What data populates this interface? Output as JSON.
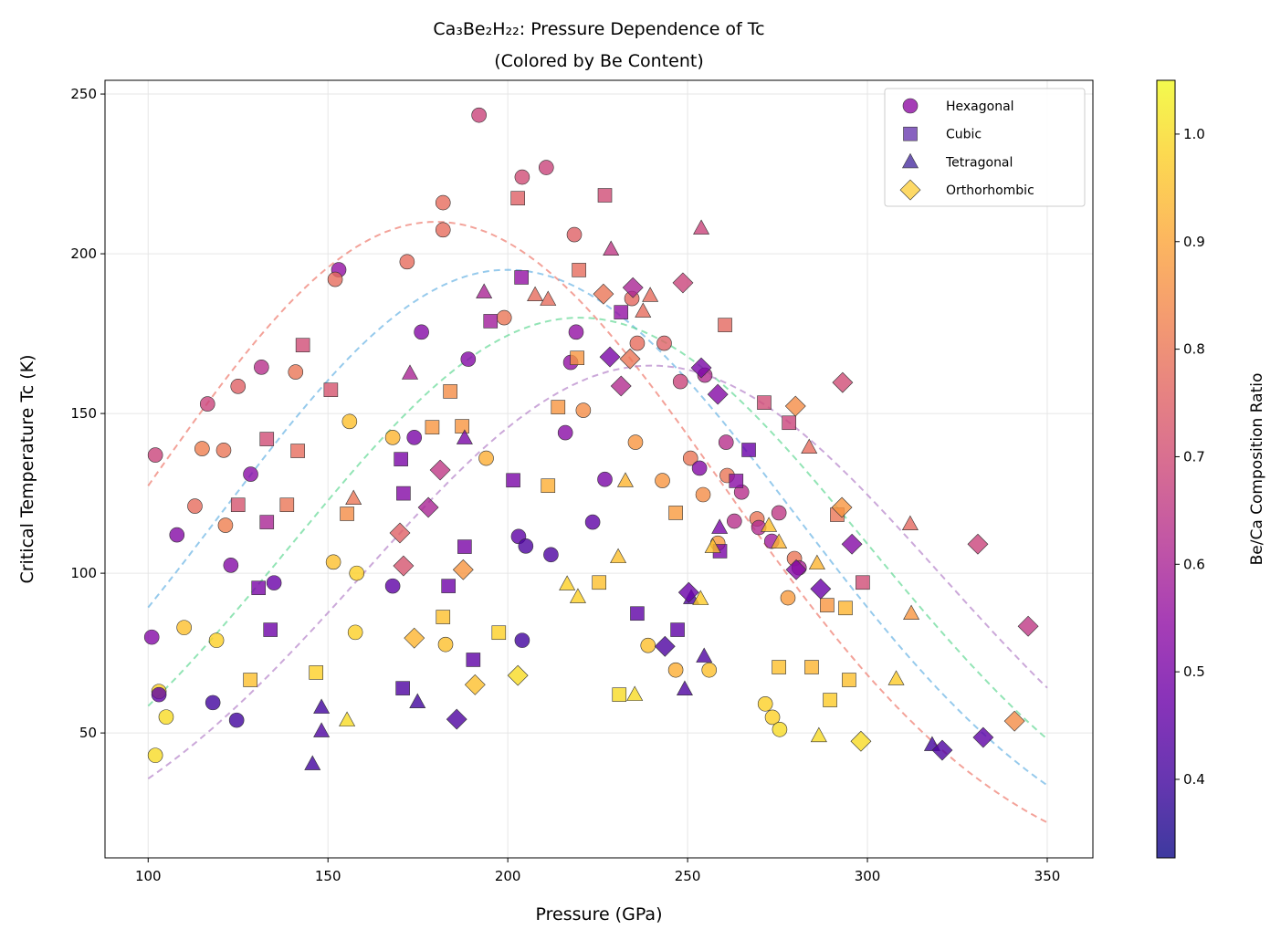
{
  "chart_data": {
    "type": "scatter",
    "title_line1": "Ca₃Be₂H₂₂: Pressure Dependence of Tc",
    "title_line2": "(Colored by Be Content)",
    "xlabel": "Pressure (GPa)",
    "ylabel": "Critical Temperature Tc (K)",
    "xlim": [
      88,
      362.7
    ],
    "ylim": [
      10.9,
      254.3
    ],
    "xticks": [
      100,
      150,
      200,
      250,
      300,
      350
    ],
    "yticks": [
      50,
      100,
      150,
      200,
      250
    ],
    "grid": true,
    "legend_position": "top-right",
    "colorbar": {
      "label": "Be/Ca Composition Ratio",
      "colormap": "plasma",
      "range": [
        0.327,
        1.05
      ],
      "ticks": [
        "0.4",
        "0.5",
        "0.6",
        "0.7",
        "0.8",
        "0.9",
        "1.0"
      ]
    },
    "trend_curves": [
      {
        "peak_tc": 210,
        "peak_pressure": 180,
        "width": 80,
        "color": "#ec7063"
      },
      {
        "peak_tc": 195,
        "peak_pressure": 200,
        "width": 80,
        "color": "#5dade2"
      },
      {
        "peak_tc": 180,
        "peak_pressure": 220,
        "width": 80,
        "color": "#58d68d"
      },
      {
        "peak_tc": 165,
        "peak_pressure": 240,
        "width": 80,
        "color": "#af7ac5"
      }
    ],
    "point_fields": [
      "pressure",
      "tc",
      "be_ca_ratio"
    ],
    "series": [
      {
        "name": "Hexagonal",
        "marker": "circle",
        "legend_color": "#8f0da4",
        "points": [
          [
            101,
            80,
            0.52
          ],
          [
            102,
            137,
            0.68
          ],
          [
            103,
            63,
            0.98
          ],
          [
            103,
            62,
            0.45
          ],
          [
            102,
            43,
            1.0
          ],
          [
            105,
            55,
            1.0
          ],
          [
            108,
            112,
            0.52
          ],
          [
            110,
            83,
            0.95
          ],
          [
            113,
            121,
            0.78
          ],
          [
            115,
            139,
            0.82
          ],
          [
            116.5,
            153,
            0.68
          ],
          [
            119,
            79,
            0.98
          ],
          [
            121,
            138.5,
            0.8
          ],
          [
            121.5,
            115,
            0.82
          ],
          [
            123,
            102.5,
            0.52
          ],
          [
            118,
            59.5,
            0.4
          ],
          [
            124.6,
            54,
            0.4
          ],
          [
            125,
            158.5,
            0.75
          ],
          [
            128.5,
            131,
            0.53
          ],
          [
            131.5,
            164.5,
            0.63
          ],
          [
            135,
            97,
            0.47
          ],
          [
            172,
            197.5,
            0.78
          ],
          [
            153,
            195,
            0.55
          ],
          [
            152,
            192,
            0.78
          ],
          [
            141,
            163,
            0.8
          ],
          [
            176,
            175.5,
            0.52
          ],
          [
            156,
            147.5,
            0.95
          ],
          [
            168,
            142.5,
            0.93
          ],
          [
            174,
            142.5,
            0.5
          ],
          [
            151.5,
            103.5,
            0.95
          ],
          [
            158,
            100,
            0.98
          ],
          [
            168,
            96,
            0.45
          ],
          [
            157.6,
            81.5,
            0.98
          ],
          [
            182.7,
            77.7,
            0.95
          ],
          [
            189,
            167,
            0.52
          ],
          [
            192,
            243.4,
            0.68
          ],
          [
            194,
            136,
            0.92
          ],
          [
            199,
            180,
            0.8
          ],
          [
            182,
            216,
            0.78
          ],
          [
            182,
            207.5,
            0.78
          ],
          [
            203,
            111.5,
            0.45
          ],
          [
            204,
            224,
            0.7
          ],
          [
            205,
            108.5,
            0.42
          ],
          [
            204,
            79,
            0.4
          ],
          [
            210.7,
            227,
            0.68
          ],
          [
            212,
            105.8,
            0.42
          ],
          [
            216,
            144,
            0.53
          ],
          [
            217.5,
            166,
            0.55
          ],
          [
            218.5,
            206,
            0.75
          ],
          [
            219,
            175.5,
            0.55
          ],
          [
            221,
            151,
            0.85
          ],
          [
            223.6,
            116,
            0.45
          ],
          [
            227,
            129.4,
            0.5
          ],
          [
            234.5,
            186,
            0.77
          ],
          [
            235.5,
            141,
            0.87
          ],
          [
            236,
            172,
            0.78
          ],
          [
            239,
            77.4,
            0.95
          ],
          [
            243,
            129,
            0.87
          ],
          [
            243.5,
            172,
            0.75
          ],
          [
            246.7,
            69.7,
            0.92
          ],
          [
            248,
            160,
            0.68
          ],
          [
            250.8,
            136,
            0.8
          ],
          [
            253.3,
            132.9,
            0.52
          ],
          [
            254.3,
            124.6,
            0.85
          ],
          [
            254.8,
            162,
            0.62
          ],
          [
            256,
            69.7,
            0.95
          ],
          [
            258.4,
            109.4,
            0.88
          ],
          [
            260.7,
            141,
            0.63
          ],
          [
            261,
            130.6,
            0.8
          ],
          [
            263,
            116.3,
            0.63
          ],
          [
            265,
            125.4,
            0.63
          ],
          [
            269.3,
            117,
            0.8
          ],
          [
            269.8,
            114.3,
            0.62
          ],
          [
            271.6,
            59.1,
            0.98
          ],
          [
            273.4,
            110,
            0.58
          ],
          [
            273.6,
            54.9,
            0.98
          ],
          [
            275.4,
            118.9,
            0.65
          ],
          [
            275.6,
            51.1,
            1.0
          ],
          [
            277.9,
            92.3,
            0.88
          ],
          [
            279.7,
            104.6,
            0.8
          ],
          [
            281,
            101.7,
            0.6
          ]
        ]
      },
      {
        "name": "Cubic",
        "marker": "square",
        "legend_color": "#6a3bb0",
        "points": [
          [
            130.7,
            95.4,
            0.5
          ],
          [
            128.4,
            66.6,
            0.95
          ],
          [
            133,
            142,
            0.7
          ],
          [
            143,
            171.4,
            0.7
          ],
          [
            150.8,
            157.4,
            0.72
          ],
          [
            141.6,
            138.3,
            0.78
          ],
          [
            125,
            121.4,
            0.72
          ],
          [
            138.6,
            121.4,
            0.8
          ],
          [
            133,
            116,
            0.6
          ],
          [
            155.3,
            118.6,
            0.85
          ],
          [
            170.3,
            135.7,
            0.5
          ],
          [
            171,
            125,
            0.52
          ],
          [
            134,
            82.3,
            0.48
          ],
          [
            146.7,
            68.9,
            0.98
          ],
          [
            170.8,
            64,
            0.42
          ],
          [
            179,
            145.7,
            0.87
          ],
          [
            184,
            156.9,
            0.85
          ],
          [
            187.3,
            146,
            0.87
          ],
          [
            182,
            86.3,
            0.95
          ],
          [
            183.5,
            96,
            0.48
          ],
          [
            188,
            108.3,
            0.5
          ],
          [
            190.4,
            72.9,
            0.45
          ],
          [
            195.2,
            178.9,
            0.58
          ],
          [
            197.5,
            81.4,
            0.98
          ],
          [
            201.5,
            129.1,
            0.5
          ],
          [
            202.8,
            217.4,
            0.75
          ],
          [
            203.8,
            192.6,
            0.55
          ],
          [
            211.2,
            127.4,
            0.92
          ],
          [
            214,
            152,
            0.87
          ],
          [
            219.3,
            167.4,
            0.87
          ],
          [
            219.8,
            194.9,
            0.78
          ],
          [
            225.4,
            97.1,
            0.95
          ],
          [
            227,
            218.3,
            0.7
          ],
          [
            231.5,
            181.7,
            0.55
          ],
          [
            231,
            62,
            1.0
          ],
          [
            236,
            87.4,
            0.45
          ],
          [
            246.7,
            118.9,
            0.88
          ],
          [
            247.2,
            82.3,
            0.45
          ],
          [
            260.4,
            177.7,
            0.77
          ],
          [
            259,
            106.9,
            0.5
          ],
          [
            263.5,
            128.9,
            0.53
          ],
          [
            267,
            138.6,
            0.47
          ],
          [
            271.3,
            153.4,
            0.7
          ],
          [
            278.2,
            147.1,
            0.68
          ],
          [
            275.4,
            70.6,
            0.95
          ],
          [
            284.5,
            70.6,
            0.93
          ],
          [
            288.8,
            90,
            0.87
          ],
          [
            289.6,
            60.3,
            0.97
          ],
          [
            291.6,
            118.3,
            0.8
          ],
          [
            293.9,
            89.1,
            0.93
          ],
          [
            294.9,
            66.6,
            0.95
          ],
          [
            298.7,
            97.1,
            0.7
          ]
        ]
      },
      {
        "name": "Tetragonal",
        "marker": "triangle",
        "legend_color": "#4a2fa0",
        "points": [
          [
            145.7,
            40.3,
            0.4
          ],
          [
            148.2,
            58,
            0.4
          ],
          [
            148.2,
            50.6,
            0.42
          ],
          [
            155.3,
            54,
            1.0
          ],
          [
            157.1,
            123.4,
            0.8
          ],
          [
            172.8,
            162.6,
            0.6
          ],
          [
            174.9,
            59.7,
            0.4
          ],
          [
            188,
            142.3,
            0.5
          ],
          [
            193.4,
            188,
            0.6
          ],
          [
            207.6,
            187.1,
            0.78
          ],
          [
            211.2,
            185.7,
            0.78
          ],
          [
            216.5,
            96.6,
            0.98
          ],
          [
            219.5,
            92.6,
            0.98
          ],
          [
            228.7,
            201.4,
            0.65
          ],
          [
            232.7,
            128.9,
            0.93
          ],
          [
            230.7,
            105.1,
            0.95
          ],
          [
            235.3,
            62,
            1.0
          ],
          [
            237.6,
            182,
            0.78
          ],
          [
            239.6,
            186.9,
            0.78
          ],
          [
            249.2,
            63.7,
            0.42
          ],
          [
            251,
            92.3,
            0.42
          ],
          [
            253.6,
            92,
            0.97
          ],
          [
            253.8,
            208,
            0.68
          ],
          [
            254.6,
            74,
            0.42
          ],
          [
            257,
            108.3,
            0.95
          ],
          [
            258.9,
            114.3,
            0.5
          ],
          [
            272.6,
            114.9,
            0.95
          ],
          [
            275.4,
            109.7,
            0.93
          ],
          [
            283.8,
            139.4,
            0.78
          ],
          [
            286,
            103.1,
            0.93
          ],
          [
            286.5,
            49.1,
            1.0
          ],
          [
            308,
            66.9,
            0.97
          ],
          [
            311.9,
            115.4,
            0.77
          ],
          [
            312.2,
            87.4,
            0.87
          ],
          [
            318,
            46.3,
            0.4
          ]
        ]
      },
      {
        "name": "Orthorhombic",
        "marker": "diamond",
        "legend_color": "#fcd040",
        "points": [
          [
            170,
            112.6,
            0.75
          ],
          [
            171,
            102.3,
            0.72
          ],
          [
            174,
            79.7,
            0.93
          ],
          [
            181.2,
            132.3,
            0.65
          ],
          [
            177.9,
            120.6,
            0.6
          ],
          [
            185.8,
            54.3,
            0.42
          ],
          [
            187.6,
            101.1,
            0.87
          ],
          [
            190.9,
            65.1,
            0.95
          ],
          [
            202.8,
            68,
            1.0
          ],
          [
            226.6,
            187.4,
            0.8
          ],
          [
            228.4,
            167.7,
            0.5
          ],
          [
            231.5,
            158.6,
            0.62
          ],
          [
            234,
            167.1,
            0.8
          ],
          [
            234.8,
            189.4,
            0.6
          ],
          [
            243.7,
            77.1,
            0.42
          ],
          [
            248.7,
            190.9,
            0.68
          ],
          [
            250.3,
            94,
            0.47
          ],
          [
            253.8,
            164.3,
            0.5
          ],
          [
            258.4,
            156,
            0.52
          ],
          [
            280.2,
            101.1,
            0.52
          ],
          [
            280,
            152.3,
            0.85
          ],
          [
            287,
            95.1,
            0.47
          ],
          [
            292.9,
            120.6,
            0.87
          ],
          [
            293.1,
            159.7,
            0.7
          ],
          [
            295.7,
            109.1,
            0.52
          ],
          [
            298.2,
            47.4,
            1.0
          ],
          [
            320.8,
            44.6,
            0.42
          ],
          [
            330.7,
            109.1,
            0.68
          ],
          [
            332.2,
            48.6,
            0.45
          ],
          [
            340.9,
            53.7,
            0.85
          ],
          [
            344.7,
            83.4,
            0.65
          ]
        ]
      }
    ]
  }
}
